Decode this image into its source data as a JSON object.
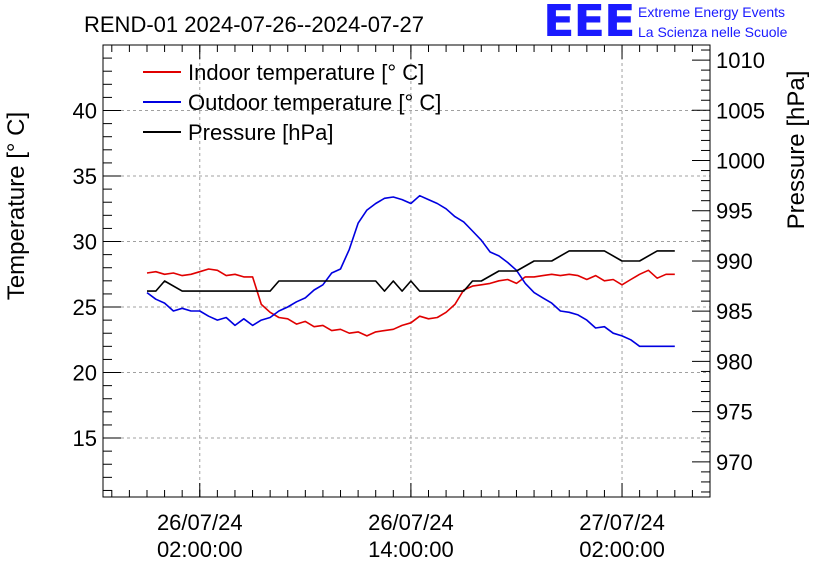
{
  "header": {
    "title": "REND-01 2024-07-26--2024-07-27",
    "logo_text": "EEE",
    "logo_line1": "Extreme Energy Events",
    "logo_line2": "La Scienza nelle Scuole"
  },
  "colors": {
    "indoor": "#e00000",
    "outdoor": "#0000e0",
    "pressure": "#000000",
    "grid": "#a0a0a0",
    "logo": "#1a1aff"
  },
  "chart_data": {
    "type": "line",
    "title": "REND-01 2024-07-26--2024-07-27",
    "xlabel": "",
    "ylabel": "Temperature [° C]",
    "y2label": "Pressure [hPa]",
    "grid": true,
    "legend_position": "top-left",
    "x_unit": "hours since 2024-07-26 00:00",
    "xlim": [
      -3.5,
      31
    ],
    "ylim": [
      10.5,
      45
    ],
    "y2lim": [
      966.5,
      1011.5
    ],
    "x_ticks": [
      {
        "x": 2,
        "label_date": "26/07/24",
        "label_time": "02:00:00"
      },
      {
        "x": 14,
        "label_date": "26/07/24",
        "label_time": "14:00:00"
      },
      {
        "x": 26,
        "label_date": "27/07/24",
        "label_time": "02:00:00"
      }
    ],
    "y_ticks": [
      15,
      20,
      25,
      30,
      35,
      40
    ],
    "y2_ticks": [
      970,
      975,
      980,
      985,
      990,
      995,
      1000,
      1005,
      1010
    ],
    "series": [
      {
        "name": "Indoor temperature [° C]",
        "axis": "left",
        "x": [
          -1,
          -0.5,
          0,
          0.5,
          1,
          1.5,
          2,
          2.5,
          3,
          3.5,
          4,
          4.5,
          5,
          5.5,
          6,
          6.5,
          7,
          7.5,
          8,
          8.5,
          9,
          9.5,
          10,
          10.5,
          11,
          11.5,
          12,
          12.5,
          13,
          13.5,
          14,
          14.5,
          15,
          15.5,
          16,
          16.5,
          17,
          17.5,
          18,
          18.5,
          19,
          19.5,
          20,
          20.5,
          21,
          21.5,
          22,
          22.5,
          23,
          23.5,
          24,
          24.5,
          25,
          25.5,
          26,
          26.5,
          27,
          27.5,
          28,
          28.5,
          29
        ],
        "y": [
          27.6,
          27.7,
          27.5,
          27.6,
          27.4,
          27.5,
          27.7,
          27.9,
          27.8,
          27.4,
          27.5,
          27.3,
          27.3,
          25.2,
          24.6,
          24.2,
          24.1,
          23.7,
          23.9,
          23.5,
          23.6,
          23.2,
          23.3,
          23.0,
          23.1,
          22.8,
          23.1,
          23.2,
          23.3,
          23.6,
          23.8,
          24.3,
          24.1,
          24.2,
          24.6,
          25.2,
          26.3,
          26.6,
          26.7,
          26.8,
          27.0,
          27.1,
          26.8,
          27.3,
          27.3,
          27.4,
          27.5,
          27.4,
          27.5,
          27.4,
          27.1,
          27.4,
          27.0,
          27.1,
          26.7,
          27.1,
          27.5,
          27.8,
          27.2,
          27.5,
          27.5
        ]
      },
      {
        "name": "Outdoor temperature [° C]",
        "axis": "left",
        "x": [
          -1,
          -0.5,
          0,
          0.5,
          1,
          1.5,
          2,
          2.5,
          3,
          3.5,
          4,
          4.5,
          5,
          5.5,
          6,
          6.5,
          7,
          7.5,
          8,
          8.5,
          9,
          9.5,
          10,
          10.5,
          11,
          11.5,
          12,
          12.5,
          13,
          13.5,
          14,
          14.5,
          15,
          15.5,
          16,
          16.5,
          17,
          17.5,
          18,
          18.5,
          19,
          19.5,
          20,
          20.5,
          21,
          21.5,
          22,
          22.5,
          23,
          23.5,
          24,
          24.5,
          25,
          25.5,
          26,
          26.5,
          27,
          27.5,
          28,
          28.5,
          29
        ],
        "y": [
          26.1,
          25.6,
          25.3,
          24.7,
          24.9,
          24.7,
          24.7,
          24.3,
          24.0,
          24.2,
          23.6,
          24.1,
          23.6,
          24.0,
          24.2,
          24.7,
          25.0,
          25.4,
          25.7,
          26.3,
          26.7,
          27.6,
          27.9,
          29.4,
          31.4,
          32.4,
          32.9,
          33.3,
          33.4,
          33.2,
          32.9,
          33.5,
          33.2,
          32.9,
          32.5,
          31.9,
          31.5,
          30.8,
          30.1,
          29.2,
          28.9,
          28.4,
          27.8,
          26.8,
          26.1,
          25.7,
          25.3,
          24.7,
          24.6,
          24.4,
          24.0,
          23.4,
          23.5,
          23.0,
          22.8,
          22.5,
          22.0,
          22.0,
          22.0,
          22.0,
          22.0
        ]
      },
      {
        "name": "Pressure [hPa]",
        "axis": "right",
        "x": [
          -1,
          -0.5,
          0,
          1,
          2,
          3,
          4,
          5,
          6,
          6.5,
          7,
          8,
          9,
          10,
          11,
          12,
          12.5,
          13,
          13.5,
          14,
          14.5,
          15,
          16,
          17,
          17.5,
          18,
          19,
          20,
          21,
          22,
          23,
          24,
          25,
          26,
          27,
          28,
          29
        ],
        "y": [
          987,
          987,
          988,
          987,
          987,
          987,
          987,
          987,
          987,
          988,
          988,
          988,
          988,
          988,
          988,
          988,
          987,
          988,
          987,
          988,
          987,
          987,
          987,
          987,
          988,
          988,
          989,
          989,
          990,
          990,
          991,
          991,
          991,
          990,
          990,
          991,
          991
        ]
      }
    ]
  }
}
